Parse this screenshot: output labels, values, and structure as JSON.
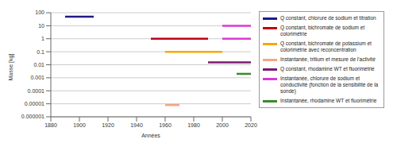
{
  "chart_data": {
    "type": "line",
    "xlabel": "Années",
    "ylabel": "Masse [kg]",
    "log": "y",
    "grid": true,
    "legend": "right",
    "xlim": [
      1880,
      2020
    ],
    "xticks": [
      1880,
      1900,
      1920,
      1940,
      1960,
      1980,
      2000,
      2020
    ],
    "ylim": [
      1e-06,
      100
    ],
    "yticks": [
      1e-06,
      1e-05,
      0.0001,
      0.001,
      0.01,
      0.1,
      1,
      10,
      100
    ],
    "series": [
      {
        "name": "Q constant, chlorure de sodium et titration",
        "color": "#1f1a8c",
        "x": [
          1890,
          1910
        ],
        "values": [
          50,
          50
        ]
      },
      {
        "name": "Q constant, bichromate de sodium et colorimétrie",
        "color": "#c0001b",
        "x": [
          1950,
          1990
        ],
        "values": [
          1,
          1
        ]
      },
      {
        "name": "Q constant, bichromate de potassium et colorimétrie avec reconcentration",
        "color": "#f5a900",
        "x": [
          1960,
          2000
        ],
        "values": [
          0.1,
          0.1
        ]
      },
      {
        "name": "Instantanée, tritium et mesure de l'activité",
        "color": "#f2a782",
        "x": [
          1960,
          1970
        ],
        "values": [
          8e-06,
          8e-06
        ]
      },
      {
        "name": "Q constant, rhodamine WT et fluorimétrie",
        "color": "#7b1a6e",
        "x": [
          1990,
          2020
        ],
        "values": [
          0.015,
          0.015
        ]
      },
      {
        "name": "Instantanée, chlorure de sodium et conductivité (fonction de la sensibilité de la sonde)",
        "color": "#d93ad3",
        "x": [
          2000,
          2020,
          2020,
          2000,
          2020
        ],
        "values": [
          10,
          10,
          null,
          1,
          1
        ]
      },
      {
        "name": "Instantanée, rhodamine WT et fluorimétrie",
        "color": "#3a8a2a",
        "x": [
          2010,
          2020
        ],
        "values": [
          0.002,
          0.002
        ]
      }
    ]
  }
}
